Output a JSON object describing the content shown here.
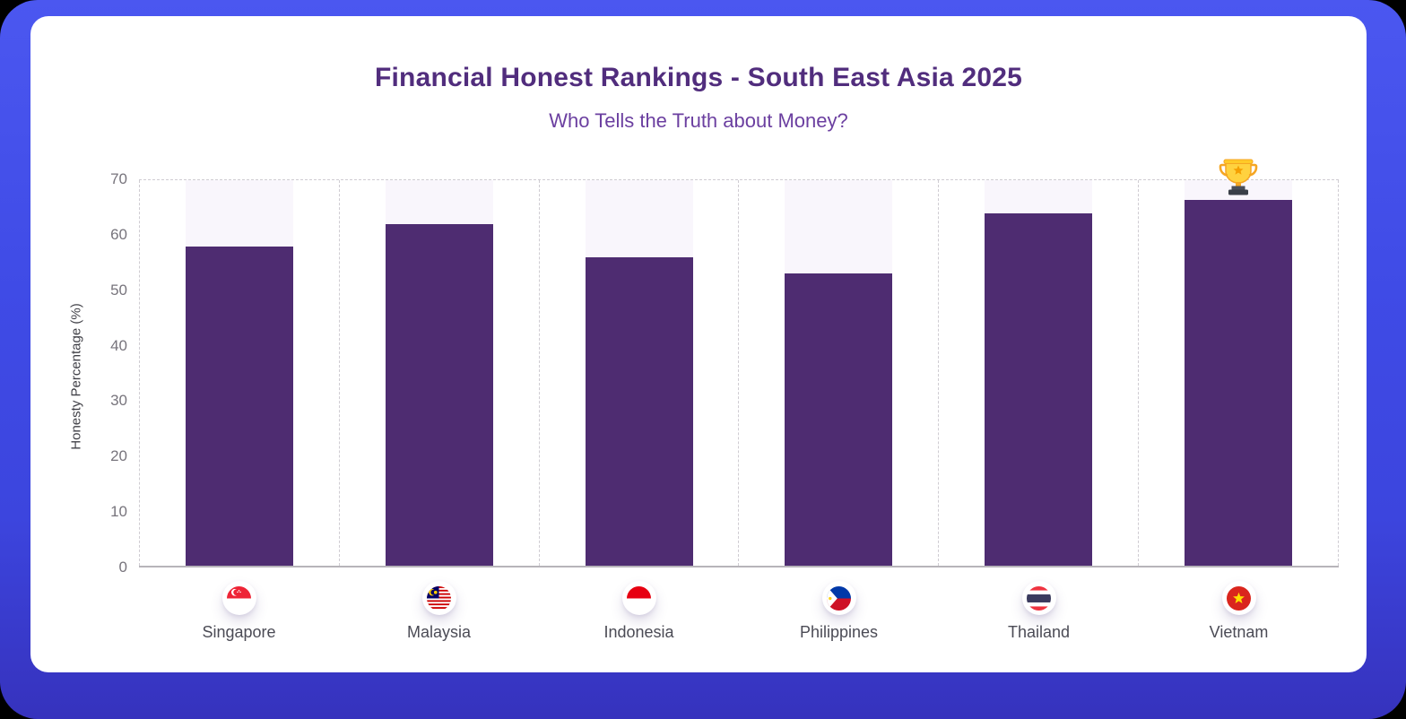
{
  "colors": {
    "frame_blue": "#3f4be6",
    "card_background": "#ffffff",
    "title_purple": "#512d7d",
    "subtitle_purple": "#6b3fa0",
    "bar_purple": "#4e2c71",
    "bar_track_lavender": "#f9f6fc",
    "axis_gray": "#b7b4ba",
    "grid_dash_gray": "#cfccd2",
    "tick_label_gray": "#77747c"
  },
  "chart_data": {
    "type": "bar",
    "title": "Financial Honest Rankings - South East Asia 2025",
    "subtitle": "Who Tells the Truth about Money?",
    "xlabel": "",
    "ylabel": "Honesty Percentage (%)",
    "categories": [
      "Singapore",
      "Malaysia",
      "Indonesia",
      "Philippines",
      "Thailand",
      "Vietnam"
    ],
    "values": [
      58,
      62,
      56,
      53,
      64,
      66.5
    ],
    "ylim": [
      0,
      70
    ],
    "yticks": [
      0,
      10,
      20,
      30,
      40,
      50,
      60,
      70
    ],
    "grid": "dashed vertical column separators and dashed top border only; solid baseline",
    "legend": "none",
    "bar_color": "#4e2c71",
    "track_color": "#f9f6fc",
    "winner": {
      "category": "Vietnam",
      "icon": "trophy-icon"
    },
    "flags": [
      {
        "country": "Singapore",
        "code": "sg",
        "icon": "singapore-flag-icon"
      },
      {
        "country": "Malaysia",
        "code": "my",
        "icon": "malaysia-flag-icon"
      },
      {
        "country": "Indonesia",
        "code": "id",
        "icon": "indonesia-flag-icon"
      },
      {
        "country": "Philippines",
        "code": "ph",
        "icon": "philippines-flag-icon"
      },
      {
        "country": "Thailand",
        "code": "th",
        "icon": "thailand-flag-icon"
      },
      {
        "country": "Vietnam",
        "code": "vn",
        "icon": "vietnam-flag-icon"
      }
    ]
  }
}
